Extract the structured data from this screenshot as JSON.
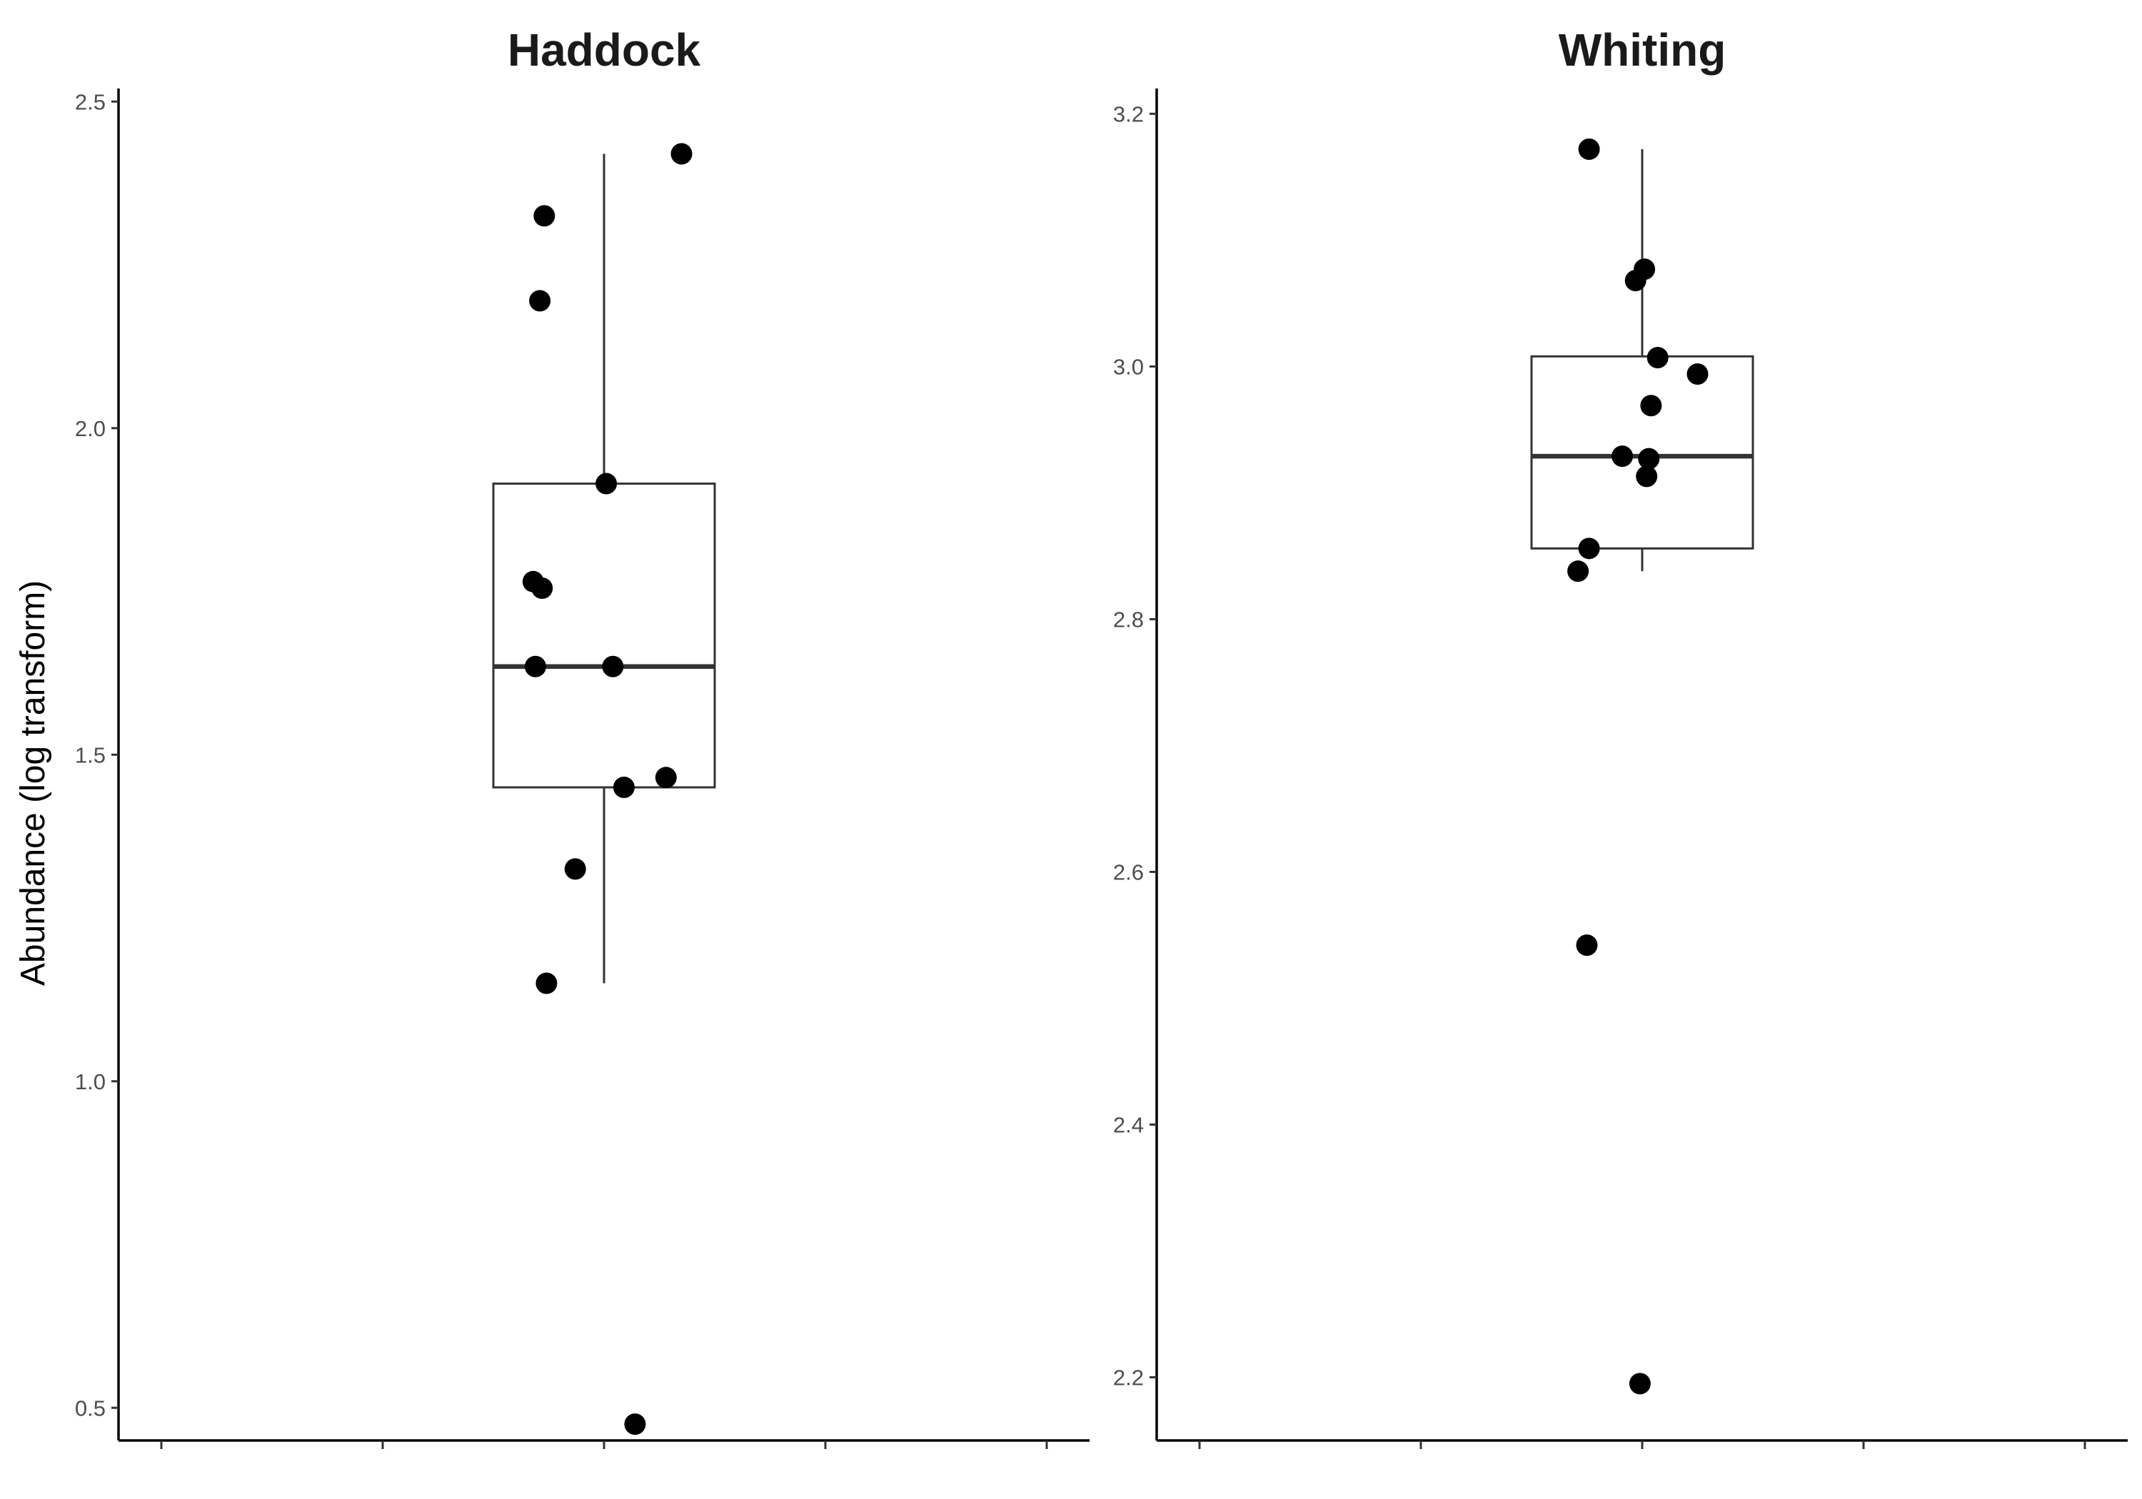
{
  "chart_data": [
    {
      "type": "boxplot",
      "title": "Haddock",
      "ylabel": "Abundance (log transform)",
      "ylim": [
        0.45,
        2.52
      ],
      "yticks": [
        0.5,
        1.0,
        1.5,
        2.0,
        2.5
      ],
      "ytick_labels": [
        "0.5",
        "1.0",
        "1.5",
        "2.0",
        "2.5"
      ],
      "grid": false,
      "box": {
        "whisker_low": 1.15,
        "q1": 1.45,
        "median": 1.635,
        "q3": 1.915,
        "whisker_high": 2.42
      },
      "points": [
        {
          "jitter": -0.27,
          "y": 2.325
        },
        {
          "jitter": -0.29,
          "y": 2.195
        },
        {
          "jitter": 0.01,
          "y": 1.915
        },
        {
          "jitter": -0.32,
          "y": 1.765
        },
        {
          "jitter": -0.28,
          "y": 1.755
        },
        {
          "jitter": -0.31,
          "y": 1.635
        },
        {
          "jitter": 0.04,
          "y": 1.635
        },
        {
          "jitter": 0.35,
          "y": 2.42
        },
        {
          "jitter": 0.28,
          "y": 1.465
        },
        {
          "jitter": 0.09,
          "y": 1.45
        },
        {
          "jitter": -0.13,
          "y": 1.325
        },
        {
          "jitter": -0.26,
          "y": 1.15
        },
        {
          "jitter": 0.14,
          "y": 0.475
        }
      ]
    },
    {
      "type": "boxplot",
      "title": "Whiting",
      "ylabel": "",
      "ylim": [
        2.15,
        3.22
      ],
      "yticks": [
        2.2,
        2.4,
        2.6,
        2.8,
        3.0,
        3.2
      ],
      "ytick_labels": [
        "2.2",
        "2.4",
        "2.6",
        "2.8",
        "3.0",
        "3.2"
      ],
      "grid": false,
      "box": {
        "whisker_low": 2.838,
        "q1": 2.856,
        "median": 2.929,
        "q3": 3.008,
        "whisker_high": 3.172
      },
      "points": [
        {
          "jitter": -0.24,
          "y": 3.172
        },
        {
          "jitter": -0.03,
          "y": 3.068
        },
        {
          "jitter": 0.01,
          "y": 3.077
        },
        {
          "jitter": 0.07,
          "y": 3.007
        },
        {
          "jitter": 0.25,
          "y": 2.994
        },
        {
          "jitter": 0.04,
          "y": 2.969
        },
        {
          "jitter": -0.09,
          "y": 2.929
        },
        {
          "jitter": 0.03,
          "y": 2.927
        },
        {
          "jitter": 0.02,
          "y": 2.913
        },
        {
          "jitter": -0.24,
          "y": 2.856
        },
        {
          "jitter": -0.29,
          "y": 2.838
        },
        {
          "jitter": -0.25,
          "y": 2.542
        },
        {
          "jitter": -0.01,
          "y": 2.195
        }
      ]
    }
  ]
}
